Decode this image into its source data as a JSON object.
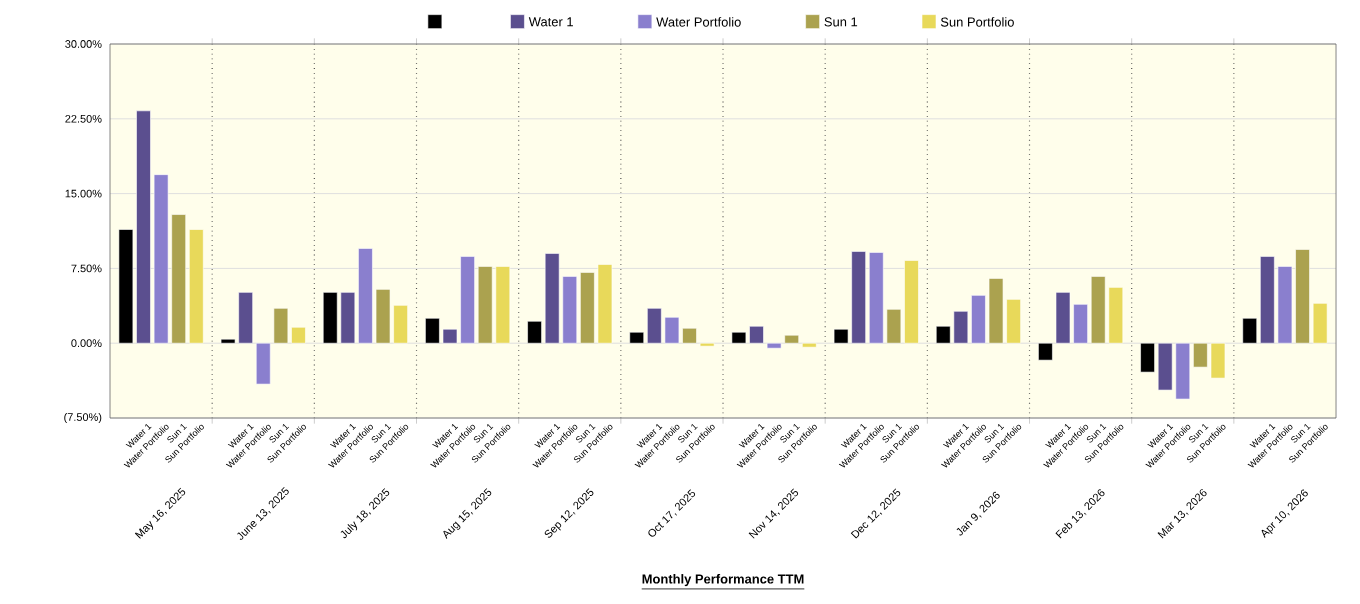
{
  "chart_data": {
    "type": "bar",
    "xlabel": "Monthly Performance TTM",
    "categories": [
      "May 16, 2025",
      "June 13, 2025",
      "July 18, 2025",
      "Aug 15, 2025",
      "Sep 12, 2025",
      "Oct 17, 2025",
      "Nov 14, 2025",
      "Dec 12, 2025",
      "Jan 9, 2026",
      "Feb 13, 2026",
      "Mar 13, 2026",
      "Apr 10, 2026"
    ],
    "series": [
      {
        "color": "#000000",
        "values": [
          11.4,
          0.4,
          5.1,
          2.5,
          2.2,
          1.1,
          1.1,
          1.4,
          1.7,
          -1.7,
          -2.9,
          2.5
        ]
      },
      {
        "name": "Water 1",
        "color": "#5b4f8f",
        "values": [
          23.3,
          5.1,
          5.1,
          1.4,
          9.0,
          3.5,
          1.7,
          9.2,
          3.2,
          5.1,
          -4.7,
          8.7
        ]
      },
      {
        "name": "Water Portfolio",
        "color": "#8a7fce",
        "values": [
          16.9,
          -4.1,
          9.5,
          8.7,
          6.7,
          2.6,
          -0.5,
          9.1,
          4.8,
          3.9,
          -5.6,
          7.7
        ]
      },
      {
        "name": "Sun 1",
        "color": "#aba24f",
        "values": [
          12.9,
          3.5,
          5.4,
          7.7,
          7.1,
          1.5,
          0.8,
          3.4,
          6.5,
          6.7,
          -2.4,
          9.4
        ]
      },
      {
        "name": "Sun Portfolio",
        "color": "#e8d95a",
        "values": [
          11.4,
          1.6,
          3.8,
          7.7,
          7.9,
          -0.3,
          -0.4,
          8.3,
          4.4,
          5.6,
          -3.5,
          4.0
        ]
      }
    ],
    "ylim": [
      -7.5,
      30
    ],
    "yticks": [
      {
        "value": -7.5,
        "label": "(7.50%)"
      },
      {
        "value": 0,
        "label": "0.00%"
      },
      {
        "value": 7.5,
        "label": "7.50%"
      },
      {
        "value": 15,
        "label": "15.00%"
      },
      {
        "value": 22.5,
        "label": "22.50%"
      },
      {
        "value": 30,
        "label": "30.00%"
      }
    ],
    "grid": true,
    "legend": "top"
  }
}
